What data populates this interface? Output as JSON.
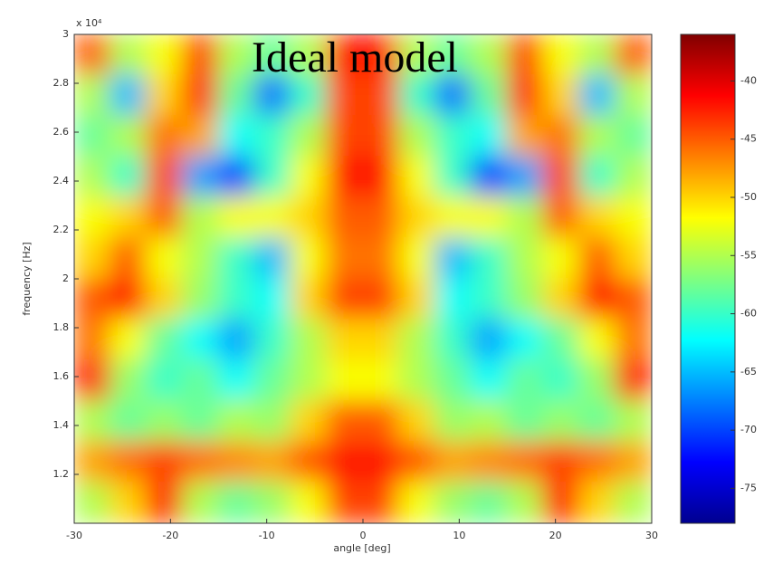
{
  "chart_data": {
    "type": "heatmap",
    "annotation": "Ideal model",
    "x_label": "angle [deg]",
    "y_label": "frequency [Hz]",
    "y_multiplier": "x 10⁴",
    "xlim": [
      -30,
      30
    ],
    "xticks": [
      -30,
      -20,
      -10,
      0,
      10,
      20,
      30
    ],
    "ylim": [
      1,
      3
    ],
    "yticks": [
      1.2,
      1.4,
      1.6,
      1.8,
      2,
      2.2,
      2.4,
      2.6,
      2.8,
      3
    ],
    "zlim": [
      -78,
      -36
    ],
    "zticks": [
      -40,
      -45,
      -50,
      -55,
      -60,
      -65,
      -70,
      -75
    ],
    "colormap": "jet",
    "z": [
      [
        -45,
        -55,
        -52,
        -44,
        -55,
        -58,
        -55,
        -42,
        -42,
        -55,
        -58,
        -55,
        -44,
        -52,
        -55,
        -45
      ],
      [
        -55,
        -65,
        -50,
        -43,
        -58,
        -68,
        -60,
        -44,
        -44,
        -60,
        -68,
        -58,
        -43,
        -50,
        -65,
        -55
      ],
      [
        -58,
        -55,
        -46,
        -48,
        -62,
        -60,
        -55,
        -44,
        -44,
        -55,
        -60,
        -62,
        -48,
        -46,
        -55,
        -58
      ],
      [
        -55,
        -60,
        -44,
        -66,
        -70,
        -60,
        -52,
        -42,
        -42,
        -52,
        -60,
        -70,
        -66,
        -44,
        -60,
        -55
      ],
      [
        -52,
        -50,
        -45,
        -55,
        -52,
        -52,
        -50,
        -45,
        -45,
        -50,
        -52,
        -52,
        -55,
        -45,
        -50,
        -52
      ],
      [
        -50,
        -45,
        -52,
        -55,
        -60,
        -65,
        -52,
        -46,
        -46,
        -52,
        -65,
        -60,
        -55,
        -52,
        -45,
        -50
      ],
      [
        -45,
        -42,
        -50,
        -56,
        -60,
        -62,
        -50,
        -44,
        -44,
        -50,
        -62,
        -60,
        -56,
        -50,
        -42,
        -45
      ],
      [
        -46,
        -52,
        -58,
        -62,
        -66,
        -60,
        -55,
        -50,
        -50,
        -55,
        -60,
        -66,
        -62,
        -58,
        -52,
        -46
      ],
      [
        -42,
        -56,
        -60,
        -58,
        -62,
        -58,
        -55,
        -52,
        -52,
        -55,
        -58,
        -62,
        -58,
        -60,
        -56,
        -42
      ],
      [
        -55,
        -58,
        -56,
        -58,
        -55,
        -56,
        -50,
        -45,
        -45,
        -50,
        -56,
        -55,
        -58,
        -56,
        -58,
        -55
      ],
      [
        -48,
        -46,
        -44,
        -46,
        -47,
        -48,
        -45,
        -42,
        -42,
        -45,
        -48,
        -47,
        -46,
        -44,
        -46,
        -48
      ],
      [
        -55,
        -50,
        -42,
        -55,
        -58,
        -56,
        -52,
        -44,
        -44,
        -52,
        -56,
        -58,
        -55,
        -42,
        -50,
        -55
      ]
    ]
  }
}
